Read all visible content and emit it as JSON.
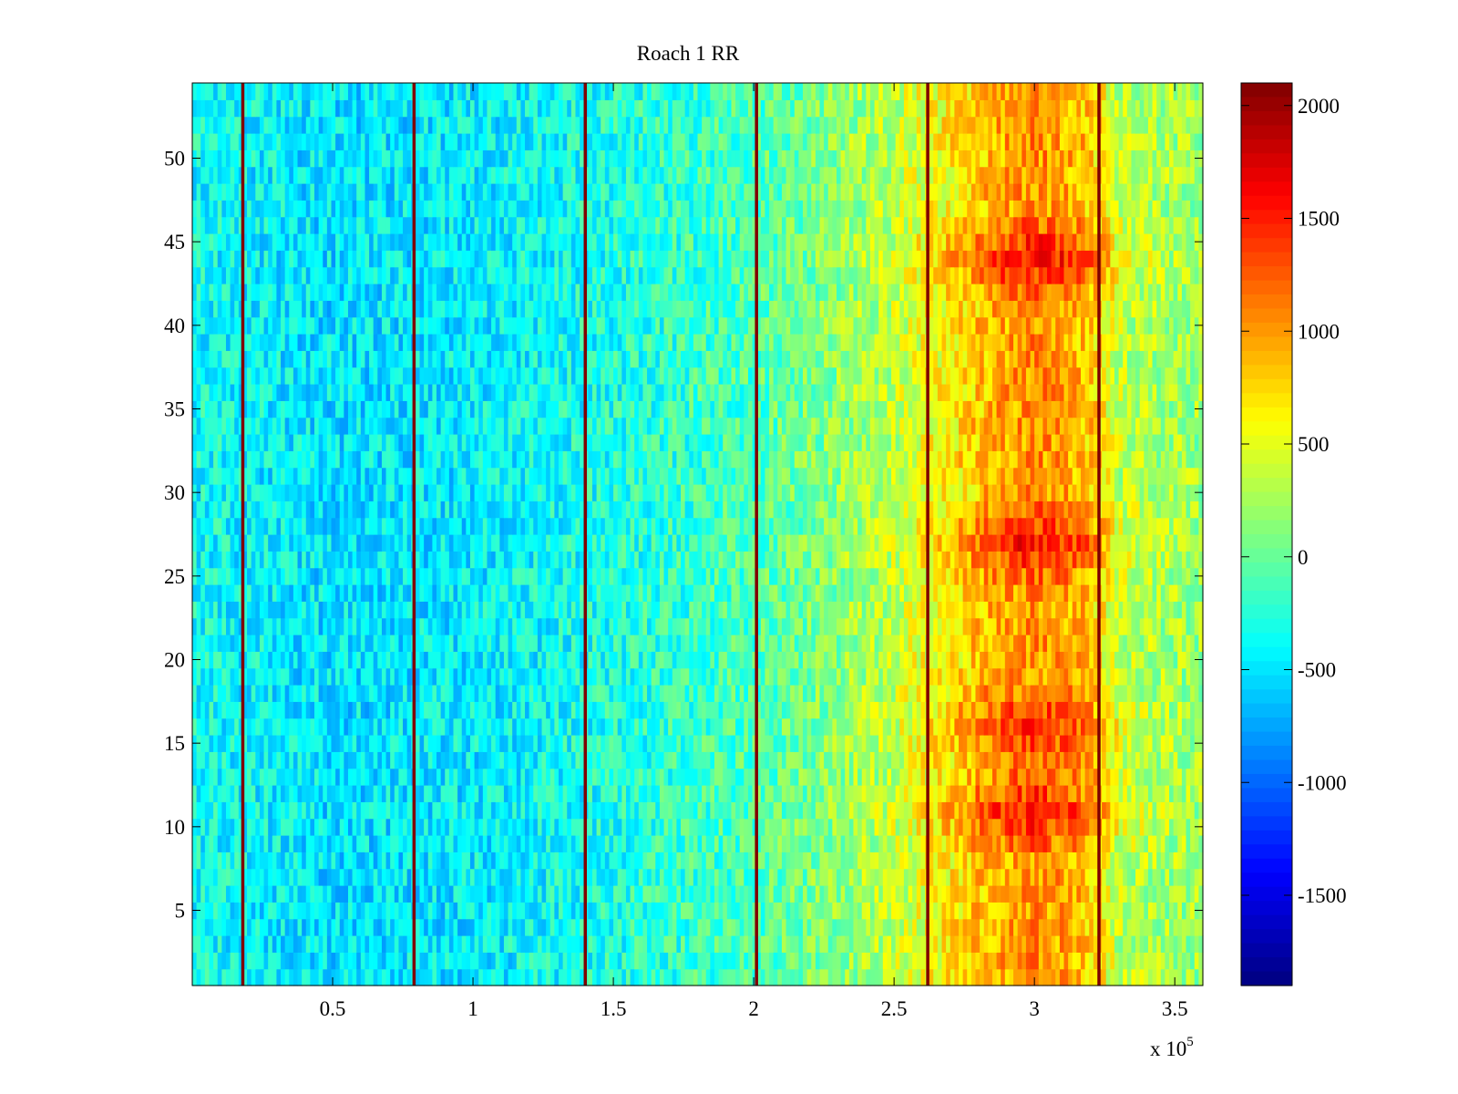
{
  "chart_data": {
    "type": "heatmap",
    "title": "Roach 1 RR",
    "xlabel": "",
    "ylabel": "",
    "x_exponent_label": "x 10",
    "x_exponent_power": "5",
    "xlim": [
      0,
      3.6
    ],
    "ylim": [
      0.5,
      54.5
    ],
    "x_ticks": [
      0.5,
      1,
      1.5,
      2,
      2.5,
      3,
      3.5
    ],
    "x_tick_labels": [
      "0.5",
      "1",
      "1.5",
      "2",
      "2.5",
      "3",
      "3.5"
    ],
    "y_ticks": [
      5,
      10,
      15,
      20,
      25,
      30,
      35,
      40,
      45,
      50
    ],
    "y_tick_labels": [
      "5",
      "10",
      "15",
      "20",
      "25",
      "30",
      "35",
      "40",
      "45",
      "50"
    ],
    "rows": 54,
    "colormap": "jet",
    "clim": [
      -1900,
      2100
    ],
    "colorbar": {
      "ticks": [
        2000,
        1500,
        1000,
        500,
        0,
        -500,
        -1000,
        -1500
      ],
      "tick_labels": [
        "2000",
        "1500",
        "1000",
        "500",
        "0",
        "-500",
        "-1000",
        "-1500"
      ]
    },
    "vertical_line_x": [
      0.18,
      0.79,
      1.4,
      2.01,
      2.62,
      3.23
    ],
    "vertical_line_value": 2100,
    "column_profile": {
      "x": [
        0,
        0.5,
        1.0,
        1.5,
        2.0,
        2.3,
        2.5,
        2.7,
        2.85,
        3.0,
        3.1,
        3.2,
        3.3,
        3.45,
        3.6
      ],
      "value": [
        -350,
        -500,
        -450,
        -300,
        -100,
        150,
        350,
        650,
        900,
        1050,
        950,
        800,
        350,
        250,
        200
      ]
    },
    "hot_rows": [
      {
        "y": 11,
        "value": 500
      },
      {
        "y": 16,
        "value": 450
      },
      {
        "y": 27,
        "value": 500
      },
      {
        "y": 44,
        "value": 550
      }
    ]
  }
}
